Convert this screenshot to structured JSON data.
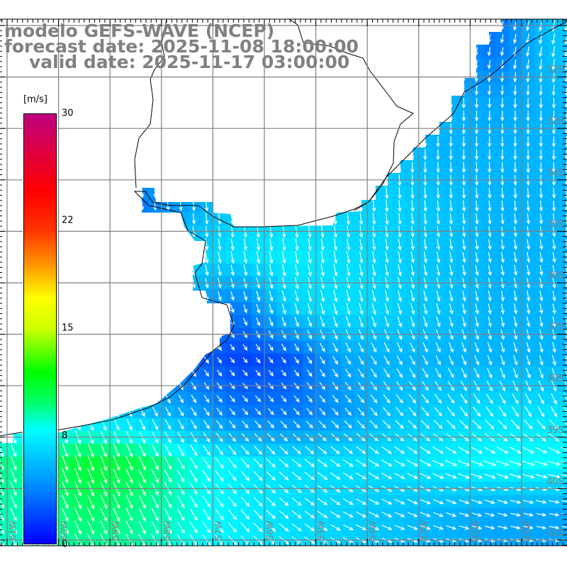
{
  "header": {
    "line1": "modelo GEFS-WAVE (NCEP)",
    "line2": "forecast date: 2025-11-08 18:00:00",
    "line3": "valid date: 2025-11-17 03:00:00"
  },
  "colorbar": {
    "unit": "[m/s]",
    "labels": [
      "30",
      "22",
      "15",
      "8",
      "0"
    ],
    "values": [
      30,
      22,
      15,
      8,
      0
    ]
  },
  "chart_data": {
    "type": "heatmap",
    "variable": "wind speed and direction",
    "lon_labels": [
      "61W",
      "60W",
      "59W",
      "58W",
      "57W",
      "56W",
      "55W",
      "54W",
      "53W",
      "52W",
      "51W"
    ],
    "lat_labels": [
      "32S",
      "33S",
      "34S",
      "35S",
      "36S",
      "37S",
      "38S",
      "39S",
      "40S",
      "41S"
    ],
    "lon_range": [
      -61.1,
      -50.1
    ],
    "lat_range": [
      -30.9,
      -41.1
    ],
    "grid_lats_note": "rows from 31S to 41S, columns from 61W to 50W, speed in m/s",
    "speed_grid": [
      [
        5,
        5,
        5,
        5,
        5,
        5,
        5,
        5,
        4.5,
        3.5,
        6
      ],
      [
        5.5,
        5.5,
        5.5,
        5.5,
        5.5,
        5.5,
        5.5,
        5.5,
        5.5,
        5,
        5.5
      ],
      [
        5.5,
        5.5,
        5.5,
        5.5,
        5.5,
        5.5,
        6,
        6,
        5.5,
        5.5,
        5.5
      ],
      [
        4,
        3.5,
        3.5,
        5,
        6.5,
        6.5,
        6.5,
        6.5,
        6,
        5.5,
        5.5
      ],
      [
        6.5,
        6.5,
        6.5,
        6.5,
        7,
        7.5,
        7,
        6.5,
        6,
        5.5,
        5.5
      ],
      [
        7,
        7,
        7,
        5,
        3.5,
        6.5,
        7,
        6.5,
        6,
        5.5,
        5.5
      ],
      [
        5,
        5,
        4.5,
        3,
        2,
        2.5,
        5,
        5.5,
        5.5,
        5.5,
        5.5
      ],
      [
        6.5,
        6.5,
        6,
        5,
        3.5,
        3.5,
        4.5,
        6,
        6.5,
        7,
        7
      ],
      [
        9.5,
        11,
        10.5,
        8.5,
        7.5,
        7,
        7,
        7,
        7.5,
        8,
        8
      ],
      [
        9,
        10,
        9.5,
        8.5,
        7.5,
        7,
        6.5,
        6,
        5.5,
        5,
        5
      ],
      [
        8.5,
        9,
        9,
        8,
        7.5,
        7,
        6.5,
        6,
        5.5,
        5,
        5
      ]
    ],
    "direction_grid_deg_toward": [
      [
        200,
        200,
        200,
        200,
        200,
        210,
        210,
        200,
        195,
        190,
        190
      ],
      [
        185,
        185,
        185,
        185,
        185,
        185,
        185,
        185,
        180,
        180,
        180
      ],
      [
        180,
        180,
        180,
        180,
        180,
        180,
        180,
        180,
        180,
        180,
        180
      ],
      [
        175,
        175,
        175,
        175,
        175,
        175,
        175,
        175,
        175,
        175,
        175
      ],
      [
        170,
        170,
        170,
        170,
        170,
        170,
        170,
        170,
        170,
        170,
        170
      ],
      [
        165,
        165,
        165,
        165,
        160,
        165,
        165,
        165,
        165,
        170,
        170
      ],
      [
        160,
        160,
        160,
        150,
        140,
        145,
        150,
        150,
        155,
        160,
        165
      ],
      [
        160,
        160,
        155,
        150,
        140,
        140,
        140,
        140,
        140,
        145,
        150
      ],
      [
        160,
        160,
        155,
        150,
        140,
        130,
        125,
        120,
        115,
        110,
        105
      ],
      [
        155,
        155,
        155,
        150,
        140,
        130,
        120,
        115,
        110,
        105,
        100
      ],
      [
        155,
        155,
        150,
        145,
        135,
        125,
        115,
        110,
        105,
        100,
        100
      ]
    ],
    "colors": {
      "land": "#ffffff",
      "coast": "#000000",
      "grid": "#808080",
      "arrow": "#ffffff"
    }
  }
}
